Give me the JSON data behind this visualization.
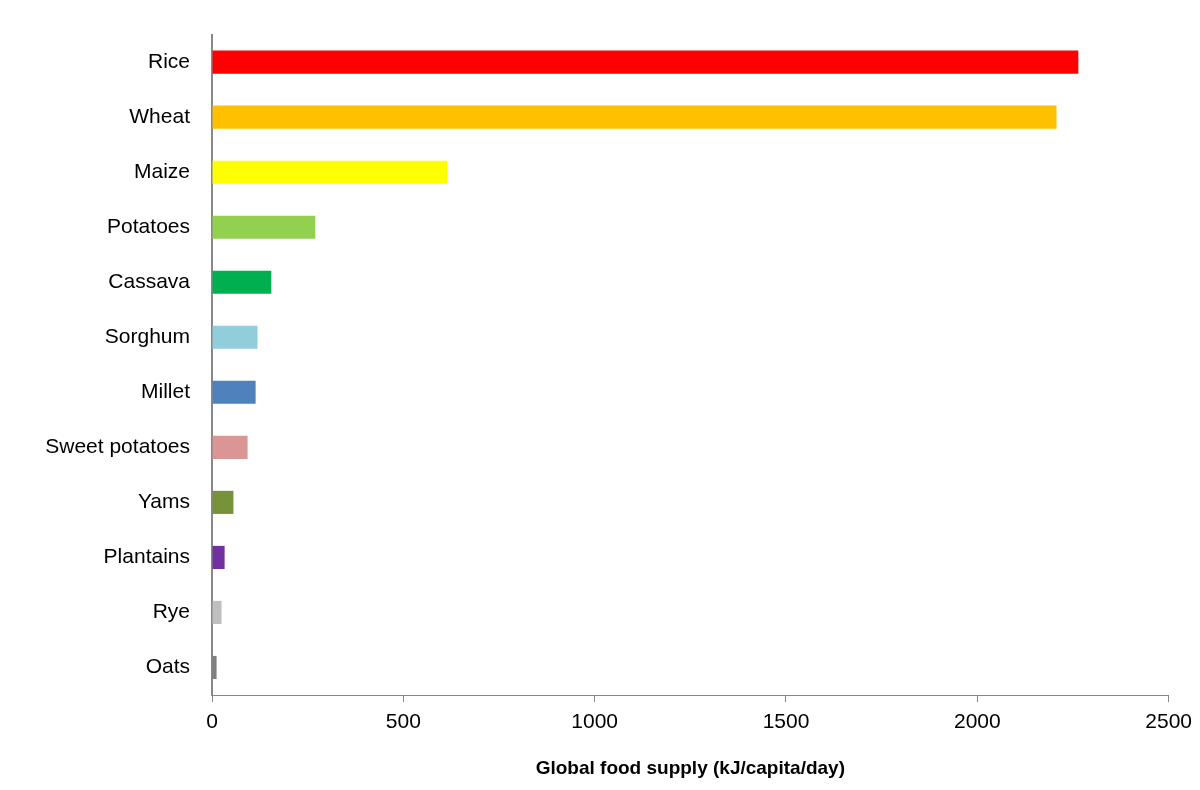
{
  "chart_data": {
    "type": "bar",
    "orientation": "horizontal",
    "xlabel": "Global food supply (kJ/capita/day)",
    "categories": [
      "Rice",
      "Wheat",
      "Maize",
      "Potatoes",
      "Cassava",
      "Sorghum",
      "Millet",
      "Sweet potatoes",
      "Yams",
      "Plantains",
      "Rye",
      "Oats"
    ],
    "values": [
      2264,
      2207,
      615,
      270,
      155,
      119,
      114,
      93,
      56,
      33,
      25,
      12
    ],
    "colors": [
      "#ff0000",
      "#ffc000",
      "#ffff00",
      "#92d050",
      "#00b050",
      "#92cddc",
      "#4f81bd",
      "#da9694",
      "#76933c",
      "#7030a0",
      "#bfbfbf",
      "#808080"
    ],
    "xlim": [
      0,
      2500
    ],
    "xticks": [
      0,
      500,
      1000,
      1500,
      2000,
      2500
    ],
    "grid": false,
    "legend": false
  }
}
